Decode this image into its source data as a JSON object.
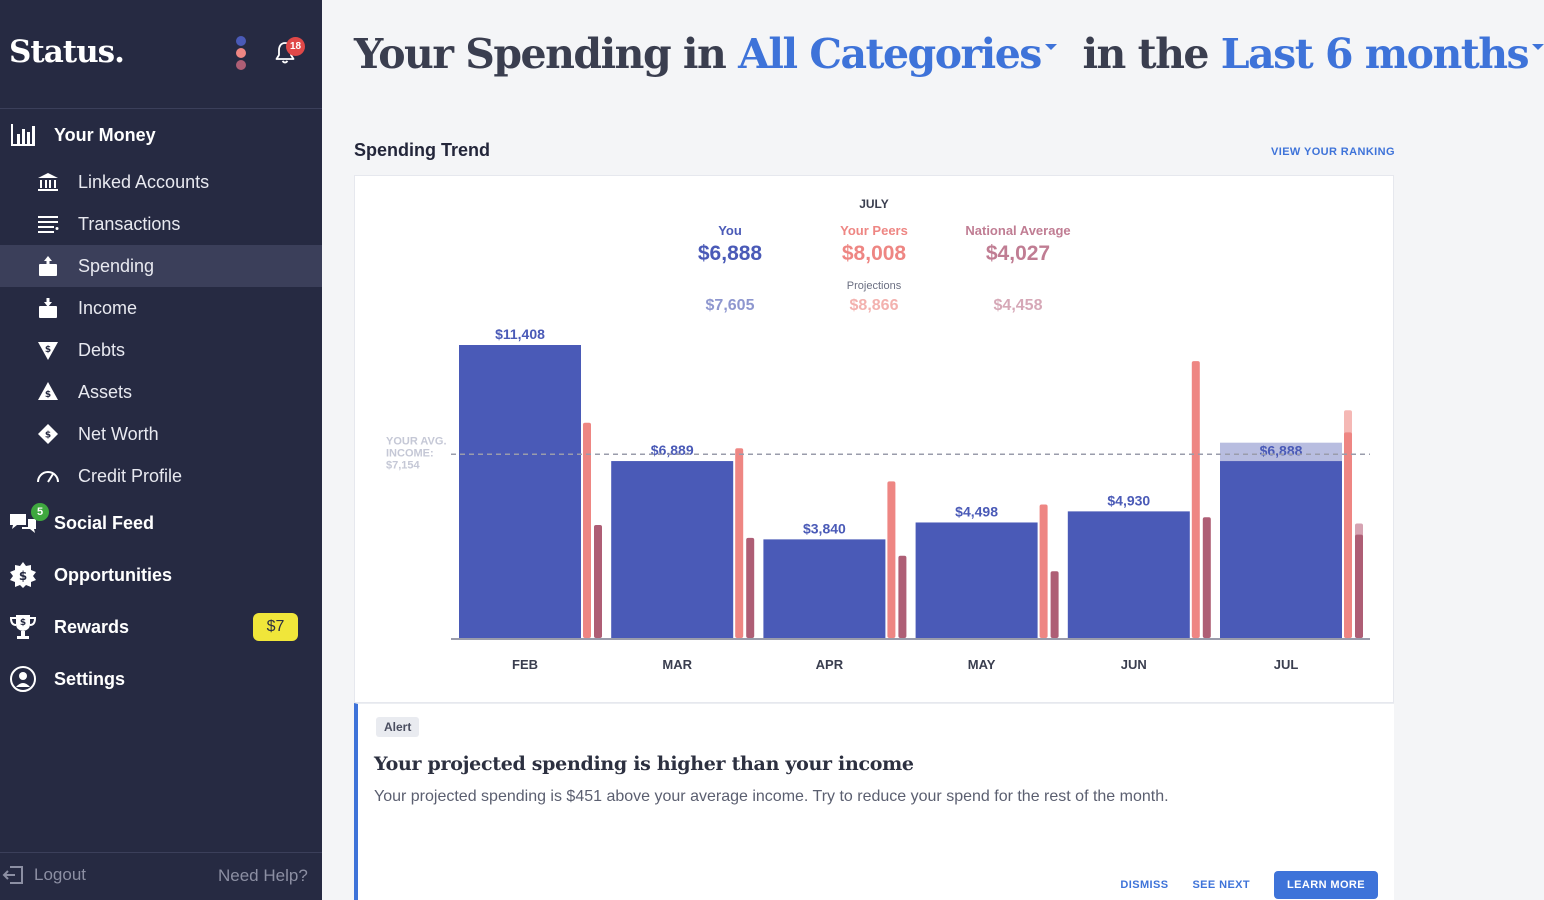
{
  "app": {
    "brand": "Status.",
    "notification_count": "18"
  },
  "sidebar": {
    "your_money": "Your Money",
    "items": [
      {
        "label": "Linked Accounts",
        "icon": "bank-icon"
      },
      {
        "label": "Transactions",
        "icon": "list-icon"
      },
      {
        "label": "Spending",
        "icon": "wallet-out-icon",
        "active": true
      },
      {
        "label": "Income",
        "icon": "wallet-in-icon"
      },
      {
        "label": "Debts",
        "icon": "debt-icon"
      },
      {
        "label": "Assets",
        "icon": "assets-icon"
      },
      {
        "label": "Net Worth",
        "icon": "net-worth-icon"
      },
      {
        "label": "Credit Profile",
        "icon": "gauge-icon"
      }
    ],
    "social_feed": "Social Feed",
    "social_feed_count": "5",
    "opportunities": "Opportunities",
    "rewards": "Rewards",
    "rewards_amount": "$7",
    "settings": "Settings",
    "logout": "Logout",
    "help": "Need Help?"
  },
  "header": {
    "prefix": "Your Spending in",
    "category": "All Categories",
    "middle": "in the",
    "period": "Last 6 months"
  },
  "section": {
    "title": "Spending Trend",
    "view_ranking": "VIEW YOUR RANKING"
  },
  "summary": {
    "month": "JULY",
    "you_label": "You",
    "you_value": "$6,888",
    "peers_label": "Your Peers",
    "peers_value": "$8,008",
    "national_label": "National Average",
    "national_value": "$4,027",
    "projections_label": "Projections",
    "you_projection": "$7,605",
    "peers_projection": "$8,866",
    "national_projection": "$4,458"
  },
  "colors": {
    "you": "#4a5ab7",
    "peers": "#ee8683",
    "national": "#ae5e75",
    "accent": "#3e73d9",
    "sidebar": "#262a42"
  },
  "chart_data": {
    "type": "bar",
    "categories": [
      "FEB",
      "MAR",
      "APR",
      "MAY",
      "JUN",
      "JUL"
    ],
    "series": [
      {
        "name": "You",
        "values": [
          11408,
          6889,
          3840,
          4498,
          4930,
          6888
        ],
        "labels": [
          "$11,408",
          "$6,889",
          "$3,840",
          "$4,498",
          "$4,930",
          "$6,888"
        ]
      },
      {
        "name": "Your Peers",
        "values": [
          8380,
          7390,
          6100,
          5200,
          10780,
          8008
        ]
      },
      {
        "name": "National Average",
        "values": [
          4400,
          3900,
          3200,
          2600,
          4700,
          4027
        ]
      }
    ],
    "projections": {
      "You": 7605,
      "Your Peers": 8866,
      "National Average": 4458
    },
    "avg_income": {
      "label_lines": [
        "YOUR AVG.",
        "INCOME:",
        "$7,154"
      ],
      "value": 7154
    },
    "ylim": [
      0,
      11408
    ]
  },
  "alert": {
    "badge": "Alert",
    "title": "Your projected spending is higher than your income",
    "body": "Your projected spending is $451 above your average income. Try to reduce your spend for the rest of the month.",
    "dismiss": "DISMISS",
    "see_next": "SEE NEXT",
    "learn_more": "LEARN MORE"
  }
}
